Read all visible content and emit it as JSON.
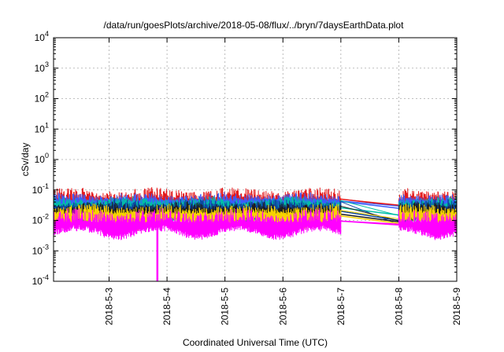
{
  "chart_data": {
    "type": "line",
    "title": "/data/run/goesPlots/archive/2018-05-08/flux/../bryn/7daysEarthData.plot",
    "xlabel": "Coordinated Universal Time (UTC)",
    "ylabel": "cSv/day",
    "y_scale": "log",
    "ylim": [
      0.0001,
      10000
    ],
    "y_ticks": [
      {
        "base": "10",
        "exp": "-4"
      },
      {
        "base": "10",
        "exp": "-3"
      },
      {
        "base": "10",
        "exp": "-2"
      },
      {
        "base": "10",
        "exp": "-1"
      },
      {
        "base": "10",
        "exp": "0"
      },
      {
        "base": "10",
        "exp": "1"
      },
      {
        "base": "10",
        "exp": "2"
      },
      {
        "base": "10",
        "exp": "3"
      },
      {
        "base": "10",
        "exp": "4"
      }
    ],
    "xlim": [
      "2018-05-02 01:00",
      "2018-05-09 00:00"
    ],
    "x_ticks": [
      "2018-5-3",
      "2018-5-4",
      "2018-5-5",
      "2018-5-6",
      "2018-5-7",
      "2018-5-8",
      "2018-5-9"
    ],
    "grid": true,
    "data_gap": [
      "2018-05-07 00:00",
      "2018-05-08 00:00"
    ],
    "series": [
      {
        "color": "#e41a1c",
        "peak": 0.12,
        "base": 0.045,
        "gap_start": 0.05,
        "gap_end": 0.03
      },
      {
        "color": "#3b5cff",
        "peak": 0.08,
        "base": 0.04,
        "gap_start": 0.042,
        "gap_end": 0.025
      },
      {
        "color": "#00bfa5",
        "peak": 0.06,
        "base": 0.03,
        "gap_start": 0.026,
        "gap_end": 0.015
      },
      {
        "color": "#0d47a1",
        "peak": 0.05,
        "base": 0.025,
        "gap_start": 0.02,
        "gap_end": 0.01
      },
      {
        "color": "#1e1e1e",
        "peak": 0.04,
        "base": 0.02,
        "gap_start": 0.016,
        "gap_end": 0.009
      },
      {
        "color": "#f7d200",
        "peak": 0.035,
        "base": 0.015,
        "gap_start": 0.014,
        "gap_end": 0.008
      },
      {
        "color": "#ff00ff",
        "peak": 0.025,
        "base": 0.008,
        "gap_start": 0.0095,
        "gap_end": 0.0075
      }
    ],
    "dropout": {
      "series_color": "#ff00ff",
      "x": "2018-05-03 20:00",
      "min_value": 0.0001
    }
  }
}
